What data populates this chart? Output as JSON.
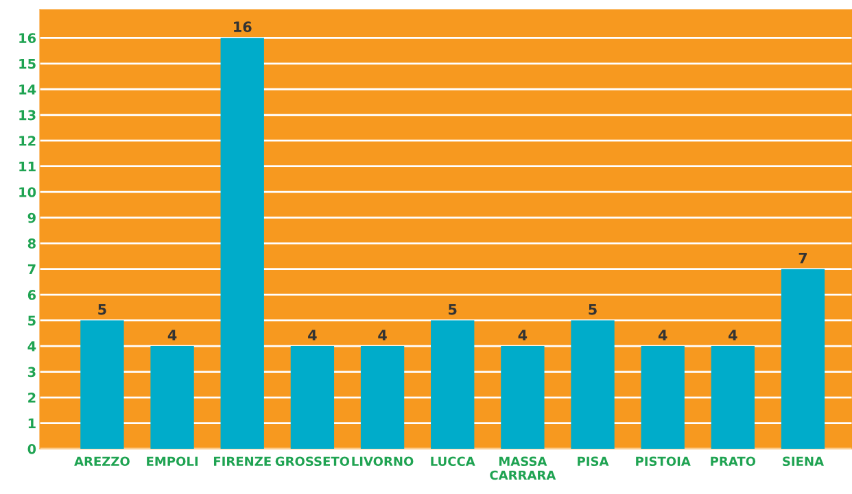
{
  "chart_data": {
    "type": "bar",
    "categories": [
      "AREZZO",
      "EMPOLI",
      "FIRENZE",
      "GROSSETO",
      "LIVORNO",
      "LUCCA",
      "MASSA\nCARRARA",
      "PISA",
      "PISTOIA",
      "PRATO",
      "SIENA"
    ],
    "values": [
      5,
      4,
      16,
      4,
      4,
      5,
      4,
      5,
      4,
      4,
      7
    ],
    "color": "#00acca",
    "ylim": [
      0,
      17.1
    ],
    "yticks": [
      0,
      1,
      2,
      3,
      4,
      5,
      6,
      7,
      8,
      9,
      10,
      11,
      12,
      13,
      14,
      15,
      16
    ],
    "grid": "y",
    "data_labels": true
  }
}
